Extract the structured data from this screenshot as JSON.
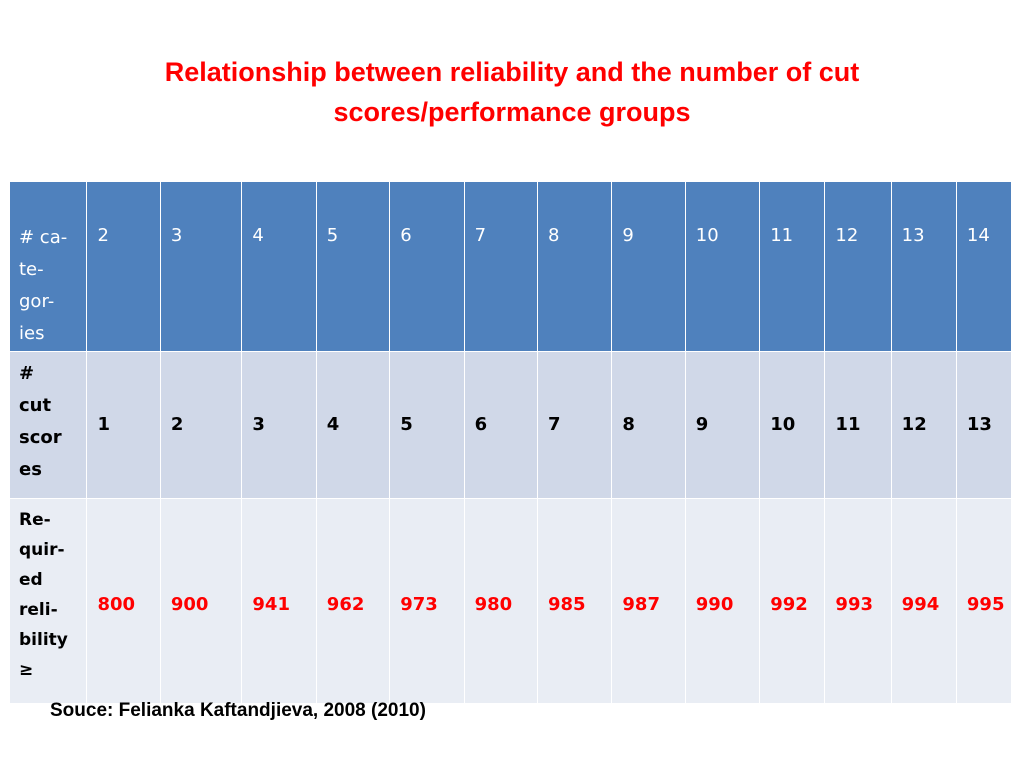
{
  "title": "Relationship between reliability and the number of cut scores/performance groups",
  "table": {
    "rows": [
      {
        "kind": "header",
        "label_lines": [
          "# ca-",
          "te-",
          "gor-",
          "ies"
        ],
        "cells": [
          "2",
          "3",
          "4",
          "5",
          "6",
          "7",
          "8",
          "9",
          "10",
          "11",
          "12",
          "13",
          "14"
        ]
      },
      {
        "kind": "cuts",
        "label_lines": [
          "#",
          "cut",
          "scor",
          "es"
        ],
        "cells": [
          "1",
          "2",
          "3",
          "4",
          "5",
          "6",
          "7",
          "8",
          "9",
          "10",
          "11",
          "12",
          "13"
        ]
      },
      {
        "kind": "rel",
        "label_lines": [
          "Re-",
          "quir-",
          "ed",
          "reli-",
          "bility",
          " ≥"
        ],
        "cells": [
          "800",
          "900",
          "941",
          "962",
          "973",
          "980",
          "985",
          "987",
          "990",
          "992",
          "993",
          "994",
          "995"
        ]
      }
    ]
  },
  "source": "Souce: Felianka Kaftandjieva, 2008 (2010)",
  "colors": {
    "title": "#ff0000",
    "header_bg": "#4f81bd",
    "row2_bg": "#d0d8e8",
    "row3_bg": "#e9edf4",
    "highlight_text": "#ff0000"
  }
}
